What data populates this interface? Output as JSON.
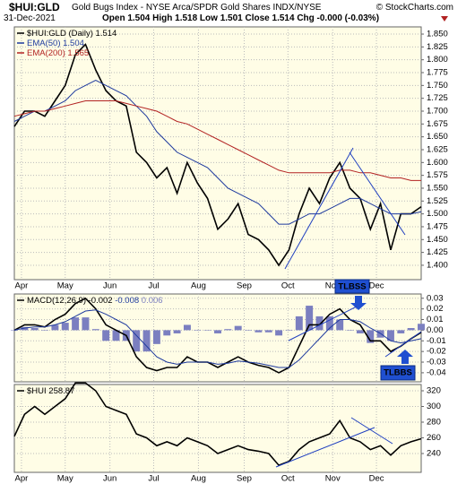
{
  "header": {
    "title": "$HUI:GLD",
    "description": "Gold Bugs Index - NYSE Arca/SPDR Gold Shares INDX/NYSE",
    "copyright": "© StockCharts.com",
    "date": "31-Dec-2021",
    "quote": "Open 1.504 High 1.518 Low 1.501 Close 1.514 Chg -0.000 (-0.03%)"
  },
  "chart_data": [
    {
      "type": "line",
      "grid": true,
      "xlim": [
        0,
        40
      ],
      "xticks": [
        {
          "value": 0.7,
          "label": "Apr"
        },
        {
          "value": 5,
          "label": "May"
        },
        {
          "value": 9.4,
          "label": "Jun"
        },
        {
          "value": 13.7,
          "label": "Jul"
        },
        {
          "value": 18.1,
          "label": "Aug"
        },
        {
          "value": 22.6,
          "label": "Sep"
        },
        {
          "value": 26.9,
          "label": "Oct"
        },
        {
          "value": 31.3,
          "label": "Nov"
        },
        {
          "value": 35.6,
          "label": "Dec"
        }
      ],
      "ylim": [
        1.372,
        1.864
      ],
      "yticks": [
        {
          "value": 1.4,
          "label": "1.400"
        },
        {
          "value": 1.425,
          "label": "1.425"
        },
        {
          "value": 1.45,
          "label": "1.450"
        },
        {
          "value": 1.475,
          "label": "1.475"
        },
        {
          "value": 1.5,
          "label": "1.500"
        },
        {
          "value": 1.525,
          "label": "1.525"
        },
        {
          "value": 1.55,
          "label": "1.550"
        },
        {
          "value": 1.575,
          "label": "1.575"
        },
        {
          "value": 1.6,
          "label": "1.600"
        },
        {
          "value": 1.625,
          "label": "1.625"
        },
        {
          "value": 1.65,
          "label": "1.650"
        },
        {
          "value": 1.675,
          "label": "1.675"
        },
        {
          "value": 1.7,
          "label": "1.700"
        },
        {
          "value": 1.725,
          "label": "1.725"
        },
        {
          "value": 1.75,
          "label": "1.750"
        },
        {
          "value": 1.775,
          "label": "1.775"
        },
        {
          "value": 1.8,
          "label": "1.800"
        },
        {
          "value": 1.825,
          "label": "1.825"
        },
        {
          "value": 1.85,
          "label": "1.850"
        }
      ],
      "series": [
        {
          "name": "$HUI:GLD (Daily)",
          "color": "#000000",
          "values": [
            1.67,
            1.7,
            1.7,
            1.69,
            1.72,
            1.75,
            1.81,
            1.83,
            1.78,
            1.74,
            1.72,
            1.71,
            1.62,
            1.6,
            1.57,
            1.59,
            1.54,
            1.6,
            1.56,
            1.53,
            1.47,
            1.49,
            1.52,
            1.46,
            1.45,
            1.43,
            1.4,
            1.43,
            1.5,
            1.55,
            1.52,
            1.57,
            1.6,
            1.55,
            1.53,
            1.47,
            1.52,
            1.43,
            1.5,
            1.5,
            1.514
          ]
        },
        {
          "name": "EMA(50)",
          "color": "#1e3a9e",
          "values": [
            1.68,
            1.69,
            1.7,
            1.7,
            1.71,
            1.72,
            1.74,
            1.75,
            1.76,
            1.75,
            1.74,
            1.73,
            1.71,
            1.69,
            1.66,
            1.64,
            1.62,
            1.61,
            1.6,
            1.59,
            1.57,
            1.55,
            1.54,
            1.53,
            1.52,
            1.5,
            1.48,
            1.48,
            1.49,
            1.5,
            1.5,
            1.51,
            1.52,
            1.53,
            1.53,
            1.52,
            1.51,
            1.5,
            1.5,
            1.5,
            1.504
          ]
        },
        {
          "name": "EMA(200)",
          "color": "#b22222",
          "values": [
            1.69,
            1.695,
            1.7,
            1.7,
            1.705,
            1.71,
            1.715,
            1.72,
            1.72,
            1.72,
            1.72,
            1.715,
            1.71,
            1.705,
            1.7,
            1.69,
            1.68,
            1.675,
            1.665,
            1.655,
            1.645,
            1.635,
            1.625,
            1.615,
            1.605,
            1.595,
            1.585,
            1.58,
            1.58,
            1.58,
            1.58,
            1.58,
            1.585,
            1.585,
            1.58,
            1.58,
            1.575,
            1.57,
            1.57,
            1.565,
            1.565
          ]
        }
      ]
    },
    {
      "type": "macd",
      "grid": true,
      "xlim": [
        0,
        40
      ],
      "ylim": [
        -0.0485,
        0.034
      ],
      "yticks": [
        0.03,
        0.02,
        0.01,
        {
          "value": 0,
          "label": "0.00"
        },
        -0.01,
        -0.02,
        -0.03,
        -0.04
      ],
      "annotations": [
        "TLBSS",
        "TLBBS"
      ],
      "series": [
        {
          "name": "MACD(12,26,9)",
          "color": "#000000",
          "values": [
            0.0,
            0.005,
            0.005,
            0.003,
            0.01,
            0.015,
            0.025,
            0.03,
            0.02,
            0.005,
            0.0,
            -0.005,
            -0.025,
            -0.035,
            -0.038,
            -0.035,
            -0.035,
            -0.025,
            -0.03,
            -0.03,
            -0.035,
            -0.03,
            -0.025,
            -0.03,
            -0.033,
            -0.035,
            -0.04,
            -0.035,
            -0.015,
            0.005,
            0.005,
            0.015,
            0.02,
            0.01,
            0.005,
            -0.01,
            -0.01,
            -0.02,
            -0.015,
            -0.008,
            -0.002
          ]
        },
        {
          "color": "#1e3a9e",
          "values": [
            0.0,
            0.002,
            0.003,
            0.003,
            0.005,
            0.008,
            0.013,
            0.018,
            0.019,
            0.015,
            0.01,
            0.005,
            -0.005,
            -0.015,
            -0.025,
            -0.03,
            -0.032,
            -0.03,
            -0.03,
            -0.03,
            -0.032,
            -0.031,
            -0.029,
            -0.03,
            -0.031,
            -0.033,
            -0.035,
            -0.035,
            -0.028,
            -0.018,
            -0.008,
            0.002,
            0.01,
            0.01,
            0.008,
            0.002,
            -0.003,
            -0.01,
            -0.012,
            -0.01,
            -0.008
          ]
        },
        {
          "color": "#7b7fc0",
          "style": "bar",
          "values": [
            0,
            0.003,
            0.002,
            0,
            0.005,
            0.007,
            0.012,
            0.012,
            0.001,
            -0.01,
            -0.01,
            -0.01,
            -0.02,
            -0.02,
            -0.013,
            -0.005,
            -0.003,
            0.005,
            0,
            0,
            -0.003,
            0.001,
            0.004,
            0,
            -0.002,
            -0.002,
            -0.005,
            0,
            0.013,
            0.023,
            0.013,
            0.013,
            0.01,
            0,
            -0.003,
            -0.012,
            -0.007,
            -0.01,
            -0.003,
            0.002,
            0.006
          ]
        }
      ]
    },
    {
      "type": "line",
      "grid": true,
      "xlim": [
        0,
        40
      ],
      "xticks": [
        {
          "value": 0.7,
          "label": "Apr"
        },
        {
          "value": 5,
          "label": "May"
        },
        {
          "value": 9.4,
          "label": "Jun"
        },
        {
          "value": 13.7,
          "label": "Jul"
        },
        {
          "value": 18.1,
          "label": "Aug"
        },
        {
          "value": 22.6,
          "label": "Sep"
        },
        {
          "value": 26.9,
          "label": "Oct"
        },
        {
          "value": 31.3,
          "label": "Nov"
        },
        {
          "value": 35.6,
          "label": "Dec"
        }
      ],
      "ylim": [
        216,
        328
      ],
      "yticks": [
        320,
        300,
        280,
        260,
        240
      ],
      "series": [
        {
          "name": "$HUI",
          "color": "#000000",
          "values": [
            262,
            290,
            300,
            290,
            300,
            310,
            330,
            330,
            320,
            300,
            295,
            290,
            265,
            260,
            250,
            255,
            250,
            260,
            255,
            250,
            240,
            245,
            250,
            245,
            243,
            240,
            225,
            230,
            245,
            255,
            260,
            265,
            282,
            260,
            255,
            245,
            250,
            238,
            250,
            255,
            258.87
          ]
        }
      ]
    }
  ]
}
